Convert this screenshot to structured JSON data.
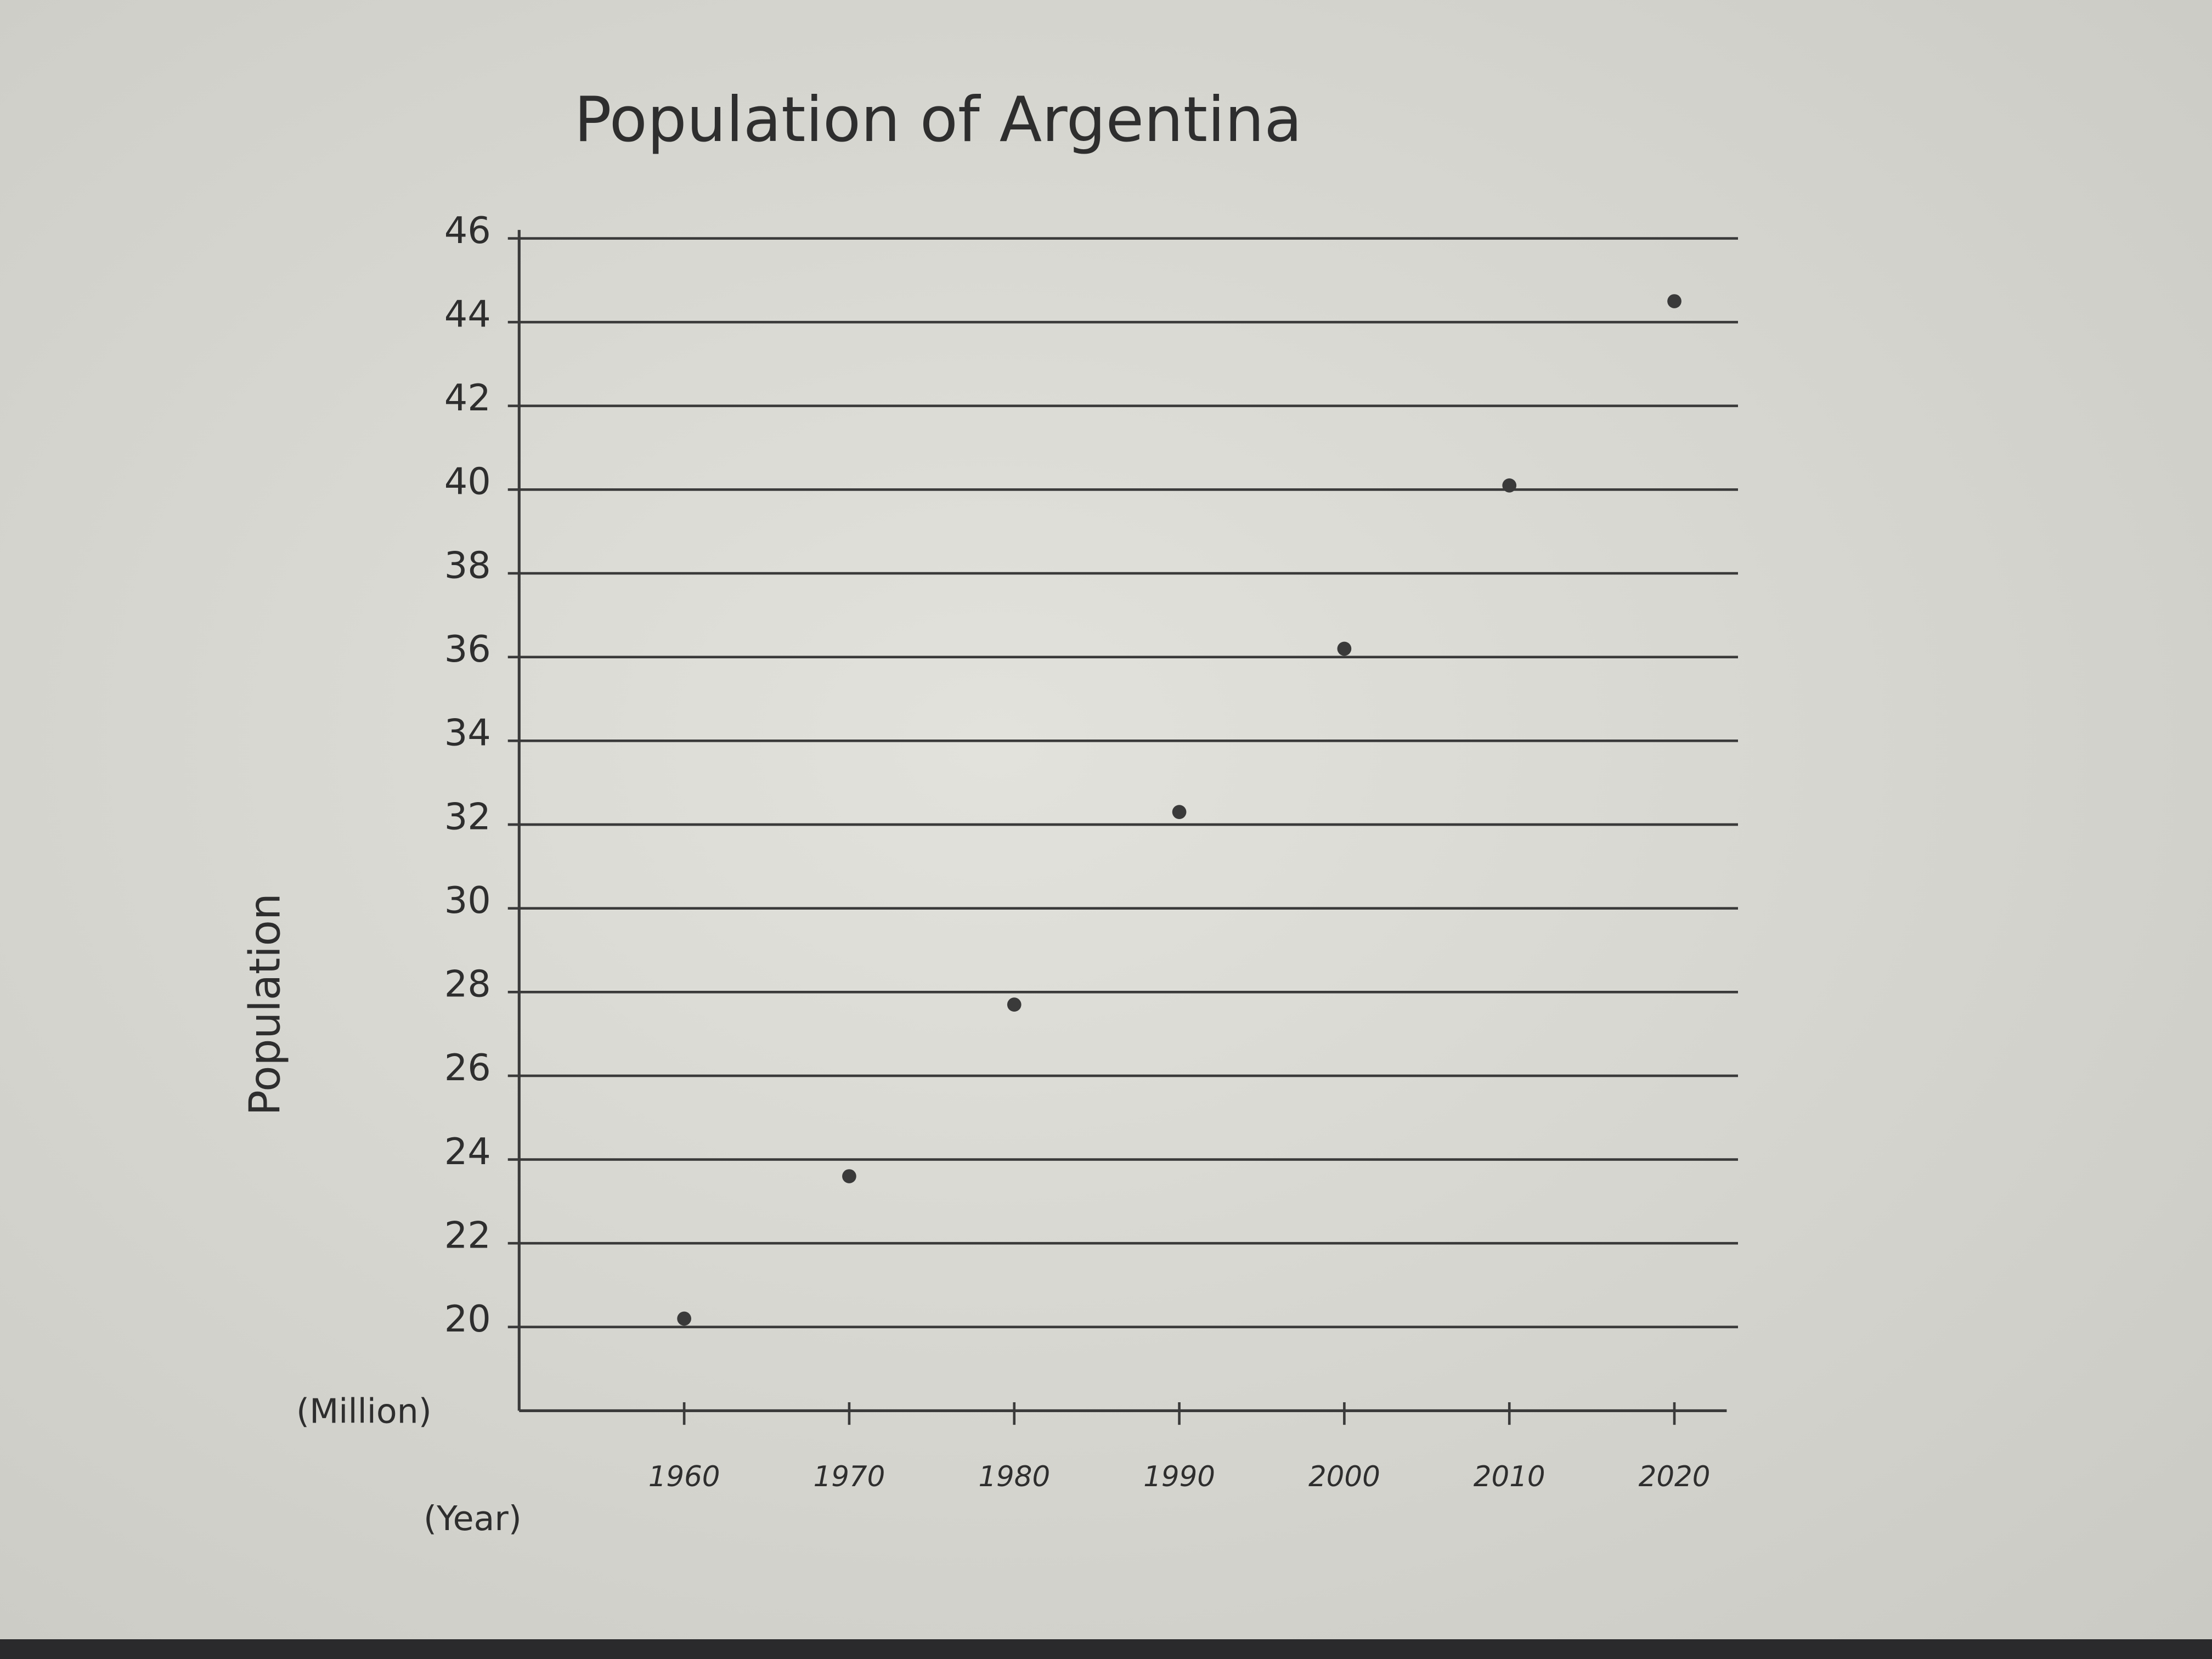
{
  "chart_data": {
    "type": "scatter",
    "title": "Population of Argentina",
    "y_label": "Population",
    "y_unit": "(Million)",
    "x_label": "(Year)",
    "x": [
      1960,
      1970,
      1980,
      1990,
      2000,
      2010,
      2020
    ],
    "values": [
      20.2,
      23.6,
      27.7,
      32.3,
      36.2,
      40.1,
      44.5
    ],
    "color": "#3a3a3a",
    "xlim": [
      1950,
      2023
    ],
    "xticks": [
      1960,
      1970,
      1980,
      1990,
      2000,
      2010,
      2020
    ],
    "ylim": [
      18,
      46
    ],
    "yticks": [
      20,
      22,
      24,
      26,
      28,
      30,
      32,
      34,
      36,
      38,
      40,
      42,
      44,
      46
    ],
    "grid": true
  }
}
